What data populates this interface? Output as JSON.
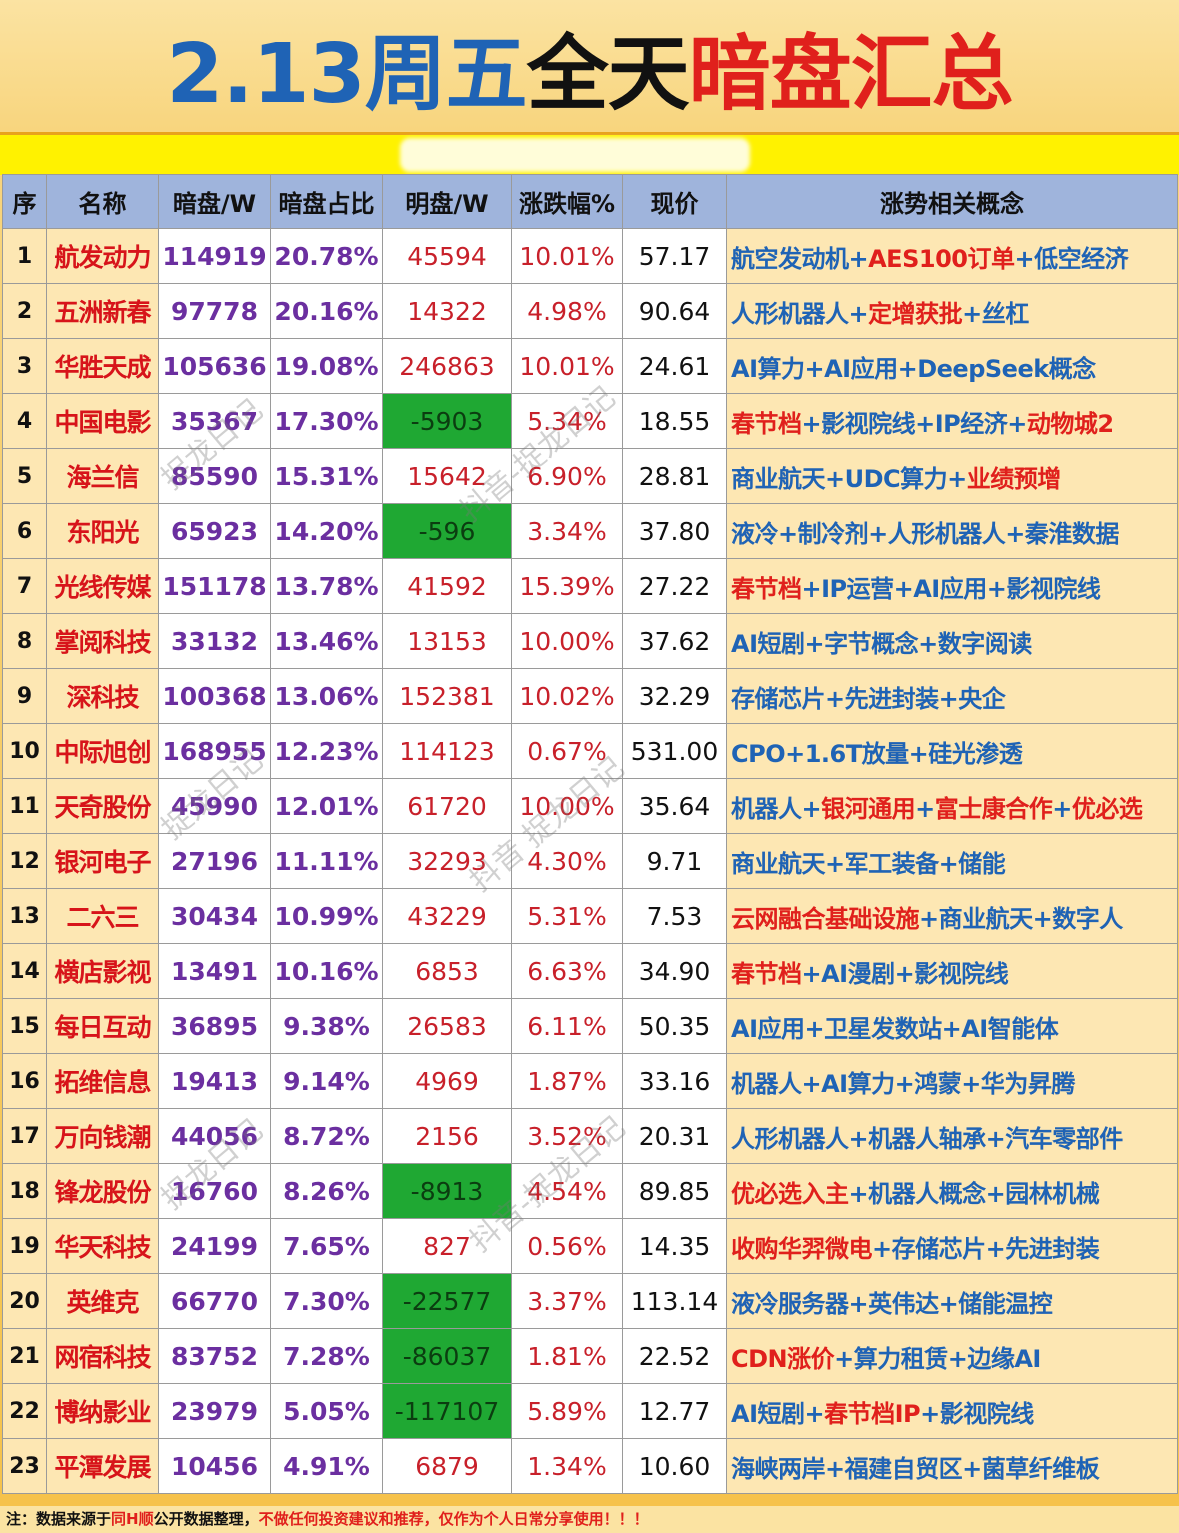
{
  "title": {
    "part1": "2.13周五",
    "part2": "全天",
    "part3": "暗盘汇总"
  },
  "headers": [
    "序",
    "名称",
    "暗盘/W",
    "暗盘占比",
    "明盘/W",
    "涨跌幅%",
    "现价",
    "涨势相关概念"
  ],
  "rows": [
    {
      "idx": "1",
      "name": "航发动力",
      "dark": "114919",
      "ratio": "20.78%",
      "ming": "45594",
      "chg": "10.01%",
      "price": "57.17",
      "concept": [
        [
          "航空发动机",
          "b"
        ],
        [
          "+",
          "b"
        ],
        [
          "AES100订单",
          "r"
        ],
        [
          "+",
          "b"
        ],
        [
          "低空经济",
          "b"
        ]
      ]
    },
    {
      "idx": "2",
      "name": "五洲新春",
      "dark": "97778",
      "ratio": "20.16%",
      "ming": "14322",
      "chg": "4.98%",
      "price": "90.64",
      "concept": [
        [
          "人形机器人",
          "b"
        ],
        [
          "+",
          "b"
        ],
        [
          "定增获批",
          "r"
        ],
        [
          "+",
          "b"
        ],
        [
          "丝杠",
          "b"
        ]
      ]
    },
    {
      "idx": "3",
      "name": "华胜天成",
      "dark": "105636",
      "ratio": "19.08%",
      "ming": "246863",
      "chg": "10.01%",
      "price": "24.61",
      "concept": [
        [
          "AI算力+AI应用+DeepSeek概念",
          "b"
        ]
      ]
    },
    {
      "idx": "4",
      "name": "中国电影",
      "dark": "35367",
      "ratio": "17.30%",
      "ming": "-5903",
      "chg": "5.34%",
      "price": "18.55",
      "concept": [
        [
          "春节档",
          "r"
        ],
        [
          "+影视院线+IP经济+",
          "b"
        ],
        [
          "动物城2",
          "r"
        ]
      ]
    },
    {
      "idx": "5",
      "name": "海兰信",
      "dark": "85590",
      "ratio": "15.31%",
      "ming": "15642",
      "chg": "6.90%",
      "price": "28.81",
      "concept": [
        [
          "商业航天+UDC算力+",
          "b"
        ],
        [
          "业绩预增",
          "r"
        ]
      ]
    },
    {
      "idx": "6",
      "name": "东阳光",
      "dark": "65923",
      "ratio": "14.20%",
      "ming": "-596",
      "chg": "3.34%",
      "price": "37.80",
      "concept": [
        [
          "液冷+制冷剂+人形机器人+秦淮数据",
          "b"
        ]
      ]
    },
    {
      "idx": "7",
      "name": "光线传媒",
      "dark": "151178",
      "ratio": "13.78%",
      "ming": "41592",
      "chg": "15.39%",
      "price": "27.22",
      "concept": [
        [
          "春节档",
          "r"
        ],
        [
          "+IP运营+AI应用+影视院线",
          "b"
        ]
      ]
    },
    {
      "idx": "8",
      "name": "掌阅科技",
      "dark": "33132",
      "ratio": "13.46%",
      "ming": "13153",
      "chg": "10.00%",
      "price": "37.62",
      "concept": [
        [
          "AI短剧+字节概念+数字阅读",
          "b"
        ]
      ]
    },
    {
      "idx": "9",
      "name": "深科技",
      "dark": "100368",
      "ratio": "13.06%",
      "ming": "152381",
      "chg": "10.02%",
      "price": "32.29",
      "concept": [
        [
          "存储芯片+先进封装+央企",
          "b"
        ]
      ]
    },
    {
      "idx": "10",
      "name": "中际旭创",
      "dark": "168955",
      "ratio": "12.23%",
      "ming": "114123",
      "chg": "0.67%",
      "price": "531.00",
      "concept": [
        [
          "CPO+1.6T放量+硅光渗透",
          "b"
        ]
      ]
    },
    {
      "idx": "11",
      "name": "天奇股份",
      "dark": "45990",
      "ratio": "12.01%",
      "ming": "61720",
      "chg": "10.00%",
      "price": "35.64",
      "concept": [
        [
          "机器人+",
          "b"
        ],
        [
          "银河通用",
          "r"
        ],
        [
          "+",
          "b"
        ],
        [
          "富士康合作",
          "r"
        ],
        [
          "+",
          "b"
        ],
        [
          "优必选",
          "r"
        ]
      ]
    },
    {
      "idx": "12",
      "name": "银河电子",
      "dark": "27196",
      "ratio": "11.11%",
      "ming": "32293",
      "chg": "4.30%",
      "price": "9.71",
      "concept": [
        [
          "商业航天+军工装备+储能",
          "b"
        ]
      ]
    },
    {
      "idx": "13",
      "name": "二六三",
      "dark": "30434",
      "ratio": "10.99%",
      "ming": "43229",
      "chg": "5.31%",
      "price": "7.53",
      "concept": [
        [
          "云网融合基础设施",
          "r"
        ],
        [
          "+商业航天+数字人",
          "b"
        ]
      ]
    },
    {
      "idx": "14",
      "name": "横店影视",
      "dark": "13491",
      "ratio": "10.16%",
      "ming": "6853",
      "chg": "6.63%",
      "price": "34.90",
      "concept": [
        [
          "春节档",
          "r"
        ],
        [
          "+AI漫剧+影视院线",
          "b"
        ]
      ]
    },
    {
      "idx": "15",
      "name": "每日互动",
      "dark": "36895",
      "ratio": "9.38%",
      "ming": "26583",
      "chg": "6.11%",
      "price": "50.35",
      "concept": [
        [
          "AI应用+卫星发数站+AI智能体",
          "b"
        ]
      ]
    },
    {
      "idx": "16",
      "name": "拓维信息",
      "dark": "19413",
      "ratio": "9.14%",
      "ming": "4969",
      "chg": "1.87%",
      "price": "33.16",
      "concept": [
        [
          "机器人+AI算力+鸿蒙+华为昇腾",
          "b"
        ]
      ]
    },
    {
      "idx": "17",
      "name": "万向钱潮",
      "dark": "44056",
      "ratio": "8.72%",
      "ming": "2156",
      "chg": "3.52%",
      "price": "20.31",
      "concept": [
        [
          "人形机器人+机器人轴承+汽车零部件",
          "b"
        ]
      ]
    },
    {
      "idx": "18",
      "name": "锋龙股份",
      "dark": "16760",
      "ratio": "8.26%",
      "ming": "-8913",
      "chg": "4.54%",
      "price": "89.85",
      "concept": [
        [
          "优必选入主",
          "r"
        ],
        [
          "+机器人概念+园林机械",
          "b"
        ]
      ]
    },
    {
      "idx": "19",
      "name": "华天科技",
      "dark": "24199",
      "ratio": "7.65%",
      "ming": "827",
      "chg": "0.56%",
      "price": "14.35",
      "concept": [
        [
          "收购华羿微电",
          "r"
        ],
        [
          "+存储芯片+先进封装",
          "b"
        ]
      ]
    },
    {
      "idx": "20",
      "name": "英维克",
      "dark": "66770",
      "ratio": "7.30%",
      "ming": "-22577",
      "chg": "3.37%",
      "price": "113.14",
      "concept": [
        [
          "液冷服务器+英伟达+储能温控",
          "b"
        ]
      ]
    },
    {
      "idx": "21",
      "name": "网宿科技",
      "dark": "83752",
      "ratio": "7.28%",
      "ming": "-86037",
      "chg": "1.81%",
      "price": "22.52",
      "concept": [
        [
          "CDN涨价",
          "r"
        ],
        [
          "+算力租赁+边缘AI",
          "b"
        ]
      ]
    },
    {
      "idx": "22",
      "name": "博纳影业",
      "dark": "23979",
      "ratio": "5.05%",
      "ming": "-117107",
      "chg": "5.89%",
      "price": "12.77",
      "concept": [
        [
          "AI短剧+",
          "b"
        ],
        [
          "春节档IP",
          "r"
        ],
        [
          "+影视院线",
          "b"
        ]
      ]
    },
    {
      "idx": "23",
      "name": "平潭发展",
      "dark": "10456",
      "ratio": "4.91%",
      "ming": "6879",
      "chg": "1.34%",
      "price": "10.60",
      "concept": [
        [
          "海峡两岸+福建自贸区+菌草纤维板",
          "b"
        ]
      ]
    }
  ],
  "footer": {
    "part1": "注：数据来源于",
    "part2": "同H顺",
    "part3": "公开数据整理，",
    "part4": "不做任何投资建议和推荐，仅作为个人日常分享使用！！！"
  },
  "watermarks": [
    "捉龙日记",
    "抖音-捉龙日记",
    "抖音 捉龙日记"
  ],
  "colors": {
    "blue": "#1f63b5",
    "red": "#e0201c",
    "negative_cell": "#1fa833",
    "header_bg": "#9fb4dc",
    "cell_cream": "#fde7b3"
  }
}
